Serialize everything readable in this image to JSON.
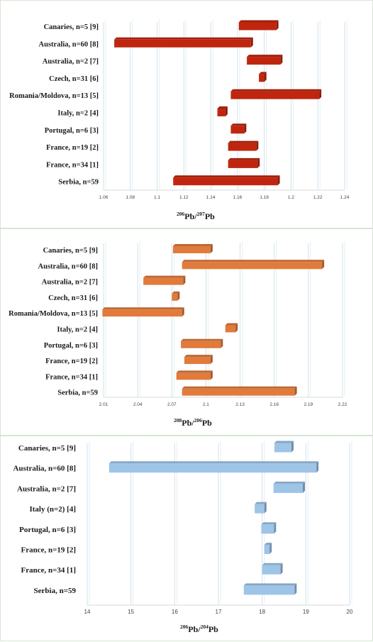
{
  "chart_data": [
    {
      "type": "bar",
      "orientation": "horizontal-floating",
      "categories": [
        "Canaries, n=5 [9]",
        "Australia, n=60 [8]",
        "Australia, n=2 [7]",
        "Czech, n=31 [6]",
        "Romania/Moldova, n=13 [5]",
        "Italy, n=2 [4]",
        "Portugal, n=6 [3]",
        "France, n=19 [2]",
        "France, n=34 [1]",
        "Serbia, n=59"
      ],
      "ranges": [
        [
          1.161,
          1.189
        ],
        [
          1.068,
          1.17
        ],
        [
          1.167,
          1.192
        ],
        [
          1.176,
          1.18
        ],
        [
          1.155,
          1.221
        ],
        [
          1.145,
          1.151
        ],
        [
          1.155,
          1.165
        ],
        [
          1.153,
          1.174
        ],
        [
          1.153,
          1.175
        ],
        [
          1.112,
          1.19
        ]
      ],
      "xlim": [
        1.06,
        1.24
      ],
      "ticks": [
        "1.06",
        "1.08",
        "1.1",
        "1.12",
        "1.14",
        "1.16",
        "1.18",
        "1.2",
        "1.22",
        "1.24"
      ],
      "xlabel_sup1": "206",
      "xlabel_mid": "Pb/",
      "xlabel_sup2": "207",
      "xlabel_end": "Pb",
      "color": "#c0260f",
      "grid": true
    },
    {
      "type": "bar",
      "orientation": "horizontal-floating",
      "categories": [
        "Canaries, n=5 [9]",
        "Australia, n=60 [8]",
        "Australia, n=2 [7]",
        "Czech, n=31 [6]",
        "Romania/Moldova, n=13 [5]",
        "Italy, n=2 [4]",
        "Portugal, n=6 [3]",
        "France, n=19 [2]",
        "France, n=34 [1]",
        "Serbia, n=59"
      ],
      "ranges": [
        [
          2.071,
          2.104
        ],
        [
          2.079,
          2.202
        ],
        [
          2.045,
          2.08
        ],
        [
          2.07,
          2.075
        ],
        [
          2.009,
          2.079
        ],
        [
          2.117,
          2.126
        ],
        [
          2.078,
          2.113
        ],
        [
          2.081,
          2.104
        ],
        [
          2.074,
          2.104
        ],
        [
          2.079,
          2.178
        ]
      ],
      "xlim": [
        2.01,
        2.22
      ],
      "ticks": [
        "2.01",
        "2.04",
        "2.07",
        "2.1",
        "2.13",
        "2.16",
        "2.19",
        "2.22"
      ],
      "xlabel_sup1": "208",
      "xlabel_mid": "Pb/",
      "xlabel_sup2": "206",
      "xlabel_end": "Pb",
      "color": "#e07b3c",
      "grid": true
    },
    {
      "type": "bar",
      "orientation": "horizontal-floating",
      "categories": [
        "Canaries, n=5 [9]",
        "Australia, n=60 [8]",
        "Australia, n=2 [7]",
        "Italy (n=2) [4]",
        "Portugal, n=6 [3]",
        "France, n=19 [2]",
        "France, n=34 [1]",
        "Serbia, n=59"
      ],
      "ranges": [
        [
          18.28,
          18.67
        ],
        [
          14.5,
          19.24
        ],
        [
          18.26,
          18.93
        ],
        [
          17.83,
          18.05
        ],
        [
          17.98,
          18.27
        ],
        [
          18.05,
          18.17
        ],
        [
          18.0,
          18.42
        ],
        [
          17.58,
          18.74
        ]
      ],
      "xlim": [
        14,
        20
      ],
      "ticks": [
        "14",
        "15",
        "16",
        "17",
        "18",
        "19",
        "20"
      ],
      "xlabel_sup1": "206",
      "xlabel_mid": "Pb/",
      "xlabel_sup2": "204",
      "xlabel_end": "Pb",
      "color": "#9ec4e8",
      "grid": true
    }
  ]
}
